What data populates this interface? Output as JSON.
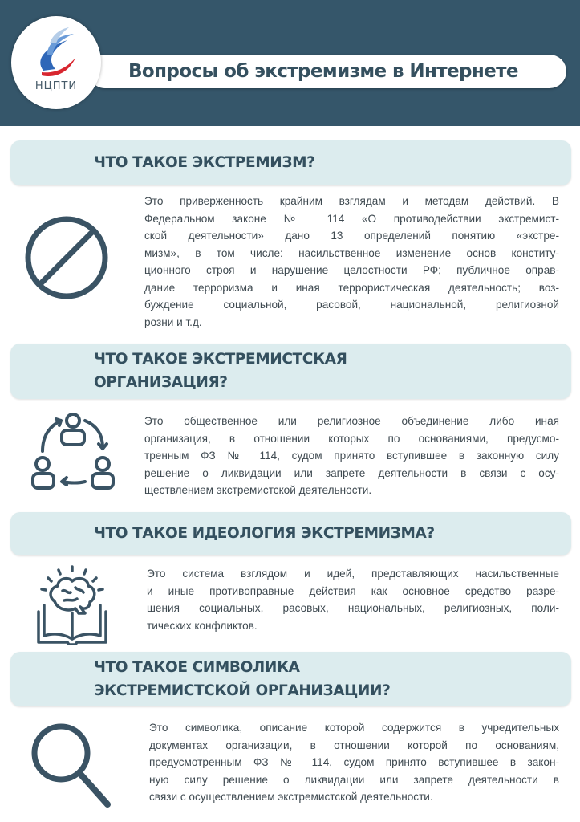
{
  "header": {
    "logo_text": "НЦПТИ",
    "title": "Вопросы об экстремизме в Интернете",
    "colors": {
      "header_bg": "#35566a",
      "section_bg": "#dcecee",
      "heading": "#34505f",
      "icon": "#3a5364"
    }
  },
  "sections": [
    {
      "icon": "prohibition-icon",
      "heading": [
        "ЧТО ТАКОЕ ЭКСТРЕМИЗМ?"
      ],
      "lines": [
        "Это приверженность крайним взглядам и методам действий. В",
        "Федеральном законе № 114 «О противодействии экстремист-",
        "ской деятельности» дано 13 определений понятию «экстре-",
        "мизм», в том числе: насильственное изменение основ конститу-",
        "ционного строя и нарушение целостности РФ; публичное оправ-",
        "дание терроризма и иная террористическая деятельность; воз-",
        "буждение социальной, расовой, национальной, религиозной",
        "розни и т.д."
      ]
    },
    {
      "icon": "people-cycle-icon",
      "heading": [
        "ЧТО ТАКОЕ ЭКСТРЕМИСТСКАЯ",
        "ОРГАНИЗАЦИЯ?"
      ],
      "lines": [
        "Это общественное или религиозное объединение либо иная",
        "организация, в отношении которых по основаниями, предусмо-",
        "тренным ФЗ № 114, судом принято вступившее в законную силу",
        "решение о ликвидации или запрете деятельности в связи с осу-",
        "ществлением экстремистской деятельности."
      ]
    },
    {
      "icon": "brain-book-icon",
      "heading": [
        "ЧТО ТАКОЕ ИДЕОЛОГИЯ ЭКСТРЕМИЗМА?"
      ],
      "lines": [
        "Это система взглядом и идей, представляющих насильственные",
        "и иные противоправные действия как основное средство разре-",
        "шения социальных, расовых, национальных, религиозных, поли-",
        "тических конфликтов."
      ]
    },
    {
      "icon": "magnifier-icon",
      "heading": [
        "ЧТО ТАКОЕ СИМВОЛИКА",
        "ЭКСТРЕМИСТСКОЙ ОРГАНИЗАЦИИ?"
      ],
      "lines": [
        "Это символика, описание которой содержится в учредительных",
        "документах организации, в отношении которой по основаниям,",
        "предусмотренным ФЗ № 114, судом принято вступившее в закон-",
        "ную силу решение о ликвидации или запрете деятельности в",
        "связи с осуществлением экстремистской деятельности."
      ]
    }
  ]
}
